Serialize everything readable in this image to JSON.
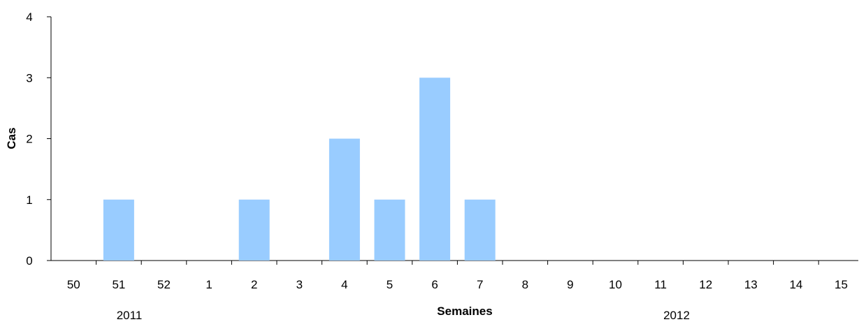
{
  "chart_data": {
    "type": "bar",
    "title": "",
    "xlabel": "Semaines",
    "ylabel": "Cas",
    "categories": [
      "50",
      "51",
      "52",
      "1",
      "2",
      "3",
      "4",
      "5",
      "6",
      "7",
      "8",
      "9",
      "10",
      "11",
      "12",
      "13",
      "14",
      "15"
    ],
    "values": [
      0,
      1,
      0,
      0,
      1,
      0,
      2,
      1,
      3,
      1,
      0,
      0,
      0,
      0,
      0,
      0,
      0,
      0
    ],
    "ylim": [
      0,
      4
    ],
    "yticks": [
      "0",
      "1",
      "2",
      "3",
      "4"
    ],
    "year_labels": [
      "2011",
      "2012"
    ],
    "bar_color": "#99CCFF",
    "grid": false,
    "legend": "none"
  }
}
